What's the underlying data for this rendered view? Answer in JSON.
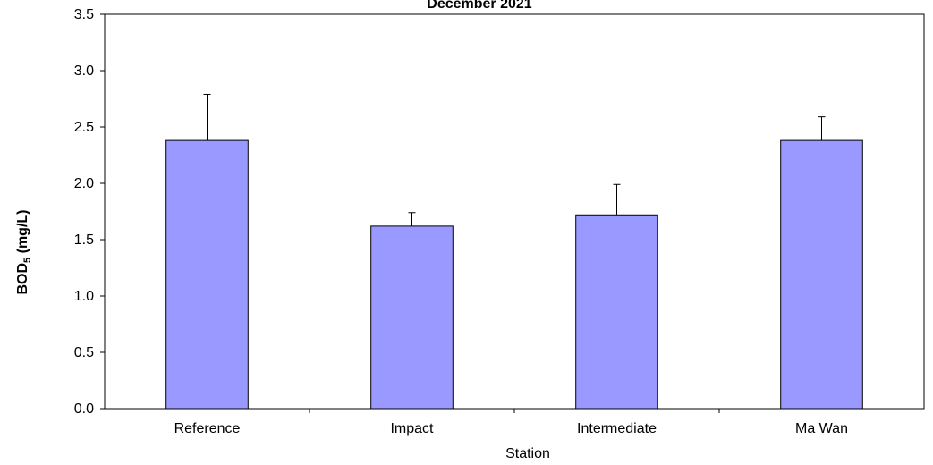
{
  "chart_data": {
    "type": "bar",
    "title": "December 2021",
    "xlabel": "Station",
    "ylabel_main": "BOD",
    "ylabel_sub": "5",
    "ylabel_unit": " (mg/L)",
    "categories": [
      "Reference",
      "Impact",
      "Intermediate",
      "Ma Wan"
    ],
    "values": [
      2.38,
      1.62,
      1.72,
      2.38
    ],
    "error_plus": [
      0.41,
      0.12,
      0.27,
      0.21
    ],
    "ylim": [
      0,
      3.5
    ],
    "yticks": [
      "0.0",
      "0.5",
      "1.0",
      "1.5",
      "2.0",
      "2.5",
      "3.0",
      "3.5"
    ],
    "ytick_values": [
      0,
      0.5,
      1.0,
      1.5,
      2.0,
      2.5,
      3.0,
      3.5
    ],
    "grid": false,
    "bar_color": "#9999ff",
    "edge_color": "#000000"
  }
}
